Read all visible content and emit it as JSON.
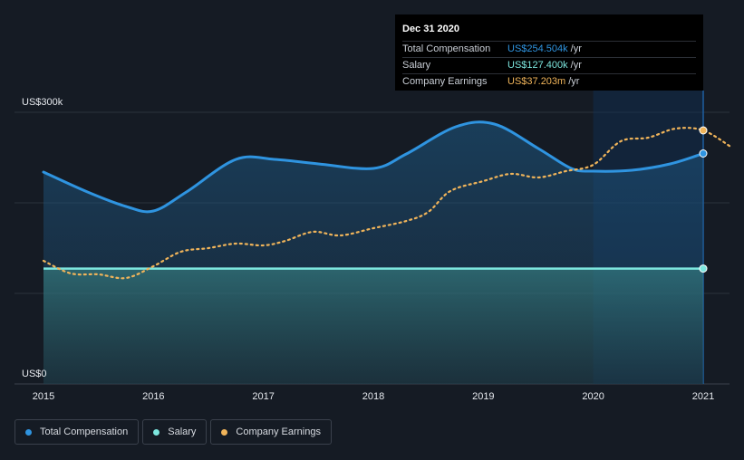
{
  "colors": {
    "background": "#151b24",
    "total_compensation": "#2f94e0",
    "salary": "#7de6de",
    "company_earnings": "#f0b45a",
    "highlight": "#0f3156"
  },
  "tooltip": {
    "date": "Dec 31 2020",
    "rows": [
      {
        "label": "Total Compensation",
        "value": "US$254.504k",
        "unit": "/yr",
        "color": "#2f94e0"
      },
      {
        "label": "Salary",
        "value": "US$127.400k",
        "unit": "/yr",
        "color": "#7de6de"
      },
      {
        "label": "Company Earnings",
        "value": "US$37.203m",
        "unit": "/yr",
        "color": "#f0b45a"
      }
    ]
  },
  "legend": [
    {
      "label": "Total Compensation",
      "color": "#2f94e0"
    },
    {
      "label": "Salary",
      "color": "#7de6de"
    },
    {
      "label": "Company Earnings",
      "color": "#f0b45a"
    }
  ],
  "chart_data": {
    "type": "area",
    "y_axis": {
      "top_label": "US$300k",
      "bottom_label": "US$0",
      "ylim": [
        0,
        300
      ]
    },
    "x_ticks": [
      "2015",
      "2016",
      "2017",
      "2018",
      "2019",
      "2020",
      "2021"
    ],
    "xlim": [
      2015,
      2021.25
    ],
    "highlight_range": [
      2020,
      2021
    ],
    "grid": true,
    "legend_position": "bottom-left",
    "series": [
      {
        "name": "Total Compensation",
        "key": "total",
        "points": [
          [
            2015.0,
            234
          ],
          [
            2015.4,
            212
          ],
          [
            2015.75,
            196
          ],
          [
            2016.0,
            191
          ],
          [
            2016.3,
            212
          ],
          [
            2016.75,
            248
          ],
          [
            2017.1,
            248
          ],
          [
            2017.5,
            243
          ],
          [
            2018.0,
            238
          ],
          [
            2018.3,
            254
          ],
          [
            2018.75,
            284
          ],
          [
            2019.1,
            287
          ],
          [
            2019.5,
            260
          ],
          [
            2019.8,
            238
          ],
          [
            2020.0,
            235
          ],
          [
            2020.35,
            236
          ],
          [
            2020.7,
            243
          ],
          [
            2021.0,
            254.5
          ]
        ]
      },
      {
        "name": "Salary",
        "key": "salary",
        "points": [
          [
            2015.0,
            127.4
          ],
          [
            2021.0,
            127.4
          ]
        ]
      },
      {
        "name": "Company Earnings",
        "key": "earnings",
        "points": [
          [
            2015.0,
            136
          ],
          [
            2015.25,
            122
          ],
          [
            2015.5,
            121
          ],
          [
            2015.75,
            117
          ],
          [
            2016.0,
            130
          ],
          [
            2016.25,
            146
          ],
          [
            2016.5,
            150
          ],
          [
            2016.75,
            155
          ],
          [
            2017.0,
            153
          ],
          [
            2017.2,
            158
          ],
          [
            2017.45,
            168
          ],
          [
            2017.7,
            164
          ],
          [
            2018.0,
            172
          ],
          [
            2018.3,
            180
          ],
          [
            2018.5,
            190
          ],
          [
            2018.7,
            213
          ],
          [
            2019.0,
            224
          ],
          [
            2019.25,
            232
          ],
          [
            2019.5,
            228
          ],
          [
            2019.75,
            235
          ],
          [
            2020.0,
            242
          ],
          [
            2020.25,
            268
          ],
          [
            2020.5,
            272
          ],
          [
            2020.75,
            282
          ],
          [
            2021.0,
            280
          ],
          [
            2021.25,
            262
          ]
        ]
      }
    ]
  }
}
